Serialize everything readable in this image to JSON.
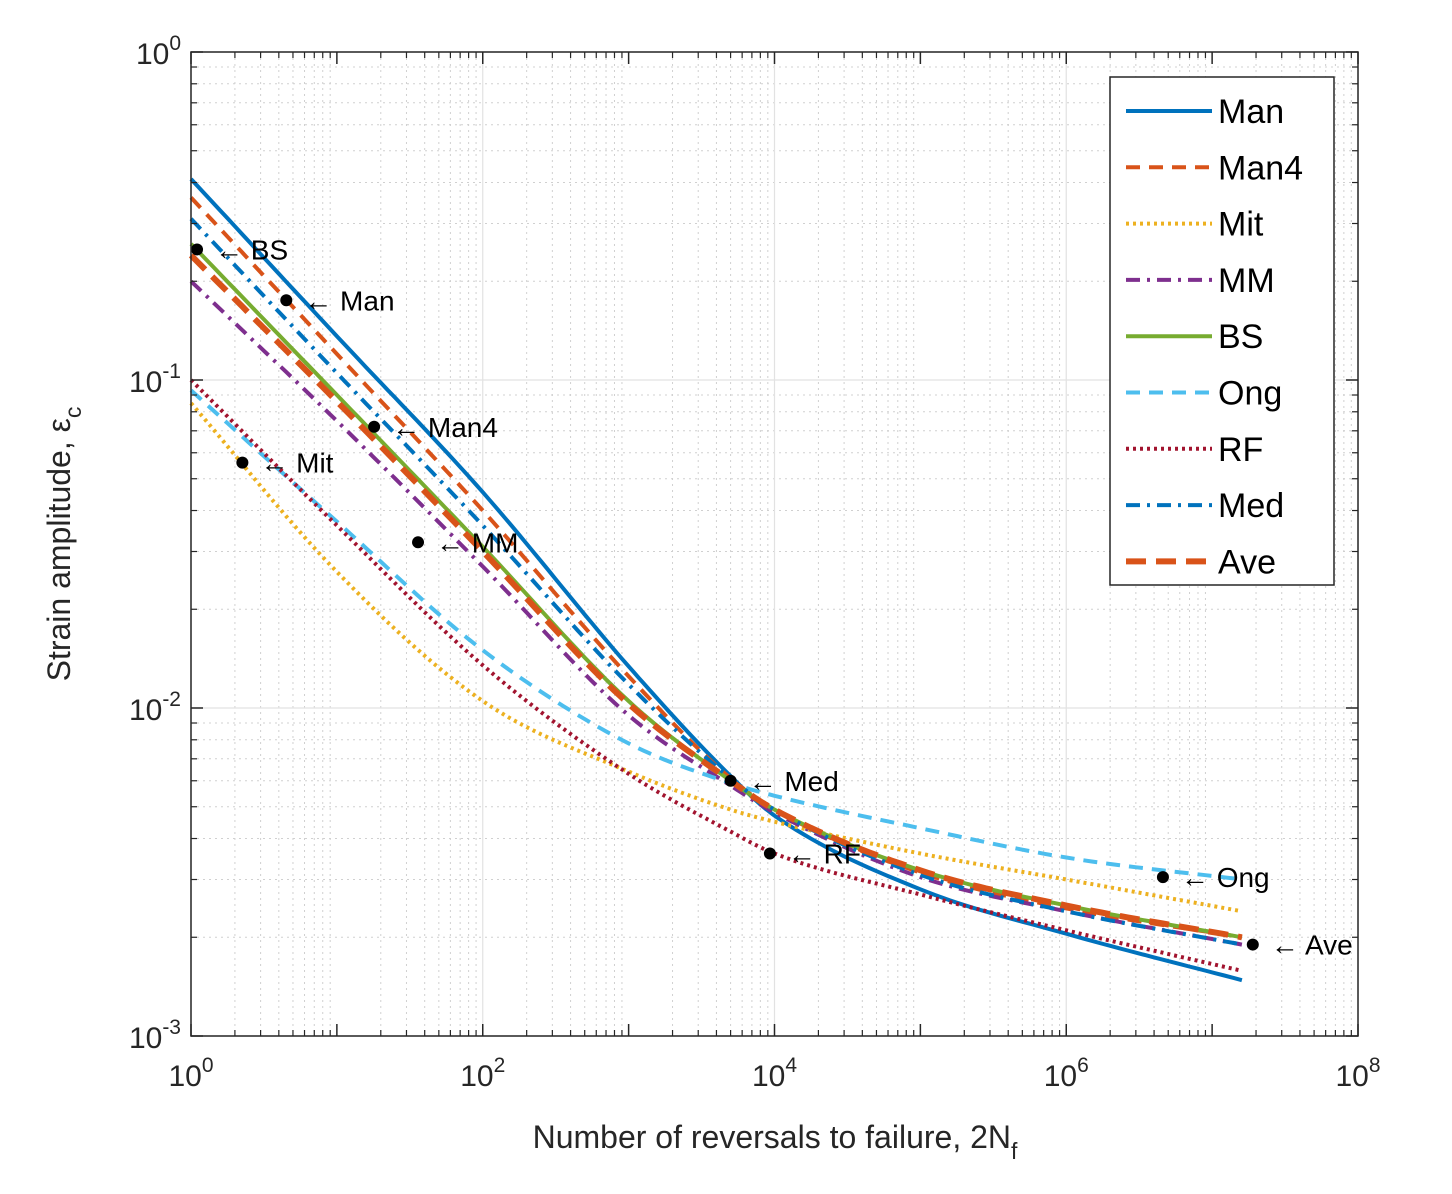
{
  "chart_data": {
    "type": "line",
    "xscale": "log",
    "yscale": "log",
    "xlim": [
      1,
      100000000
    ],
    "ylim": [
      0.001,
      1
    ],
    "xlabel": "Number of reversals to failure, 2N",
    "xlabel_sub": "f",
    "ylabel": "Strain amplitude, ε",
    "ylabel_sub": "c",
    "xticks": [
      {
        "base": "10",
        "exp": "0",
        "value": 1
      },
      {
        "base": "10",
        "exp": "2",
        "value": 100
      },
      {
        "base": "10",
        "exp": "4",
        "value": 10000
      },
      {
        "base": "10",
        "exp": "6",
        "value": 1000000
      },
      {
        "base": "10",
        "exp": "8",
        "value": 100000000
      }
    ],
    "yticks": [
      {
        "base": "10",
        "exp": "0",
        "value": 1
      },
      {
        "base": "10",
        "exp": "-1",
        "value": 0.1
      },
      {
        "base": "10",
        "exp": "-2",
        "value": 0.01
      },
      {
        "base": "10",
        "exp": "-3",
        "value": 0.001
      }
    ],
    "grid": true,
    "minor_grid": true,
    "legend_position": "top-right",
    "series": [
      {
        "name": "Man",
        "color": "#0072BD",
        "dash": "solid",
        "width": 4,
        "x": [
          1,
          10,
          100,
          1000,
          5000,
          10000,
          100000,
          1000000,
          16000000
        ],
        "y": [
          0.41,
          0.136,
          0.0455,
          0.0134,
          0.0062,
          0.0047,
          0.0028,
          0.00205,
          0.00148
        ]
      },
      {
        "name": "Man4",
        "color": "#D95319",
        "dash": "dashed",
        "width": 4,
        "x": [
          1,
          10,
          100,
          1000,
          5000,
          10000,
          100000,
          1000000,
          16000000
        ],
        "y": [
          0.36,
          0.12,
          0.04,
          0.0125,
          0.0061,
          0.0049,
          0.00315,
          0.00245,
          0.002
        ]
      },
      {
        "name": "Mit",
        "color": "#EDB120",
        "dash": "dotted",
        "width": 4,
        "x": [
          1,
          10,
          100,
          1000,
          5000,
          10000,
          100000,
          1000000,
          16000000
        ],
        "y": [
          0.085,
          0.026,
          0.0105,
          0.0064,
          0.0049,
          0.0045,
          0.0036,
          0.003,
          0.0024
        ]
      },
      {
        "name": "MM",
        "color": "#7E2F8E",
        "dash": "dashdot",
        "width": 4,
        "x": [
          1,
          10,
          100,
          1000,
          5000,
          10000,
          100000,
          1000000,
          16000000
        ],
        "y": [
          0.2,
          0.075,
          0.027,
          0.0095,
          0.0058,
          0.0048,
          0.00305,
          0.0024,
          0.0019
        ]
      },
      {
        "name": "BS",
        "color": "#77AC30",
        "dash": "solid",
        "width": 4,
        "x": [
          1,
          10,
          100,
          1000,
          5000,
          10000,
          100000,
          1000000,
          16000000
        ],
        "y": [
          0.26,
          0.09,
          0.031,
          0.0105,
          0.006,
          0.0049,
          0.0032,
          0.0025,
          0.002
        ]
      },
      {
        "name": "Ong",
        "color": "#4DBEEE",
        "dash": "dashed",
        "width": 4,
        "x": [
          1,
          10,
          100,
          1000,
          5000,
          10000,
          100000,
          1000000,
          16000000
        ],
        "y": [
          0.093,
          0.037,
          0.015,
          0.0078,
          0.0059,
          0.0054,
          0.0043,
          0.0035,
          0.003
        ]
      },
      {
        "name": "RF",
        "color": "#A2142F",
        "dash": "dotted",
        "width": 4,
        "x": [
          1,
          10,
          100,
          1000,
          5000,
          10000,
          100000,
          1000000,
          16000000
        ],
        "y": [
          0.1,
          0.036,
          0.0135,
          0.0063,
          0.0042,
          0.0036,
          0.0027,
          0.0021,
          0.00158
        ]
      },
      {
        "name": "Med",
        "color": "#0072BD",
        "dash": "dashdot",
        "width": 4,
        "x": [
          1,
          10,
          100,
          1000,
          5000,
          10000,
          100000,
          1000000,
          16000000
        ],
        "y": [
          0.31,
          0.105,
          0.036,
          0.0118,
          0.0061,
          0.0049,
          0.0031,
          0.0024,
          0.0019
        ]
      },
      {
        "name": "Ave",
        "color": "#D95319",
        "dash": "longdash",
        "width": 6,
        "x": [
          1,
          10,
          100,
          1000,
          5000,
          10000,
          100000,
          1000000,
          16000000
        ],
        "y": [
          0.24,
          0.086,
          0.03,
          0.0103,
          0.006,
          0.0049,
          0.0032,
          0.0025,
          0.002
        ]
      }
    ],
    "markers": [
      {
        "label": "BS",
        "x": 1.1,
        "y": 0.25
      },
      {
        "label": "Man",
        "x": 4.5,
        "y": 0.175
      },
      {
        "label": "Man4",
        "x": 18,
        "y": 0.072
      },
      {
        "label": "Mit",
        "x": 2.25,
        "y": 0.056
      },
      {
        "label": "MM",
        "x": 36,
        "y": 0.032
      },
      {
        "label": "Med",
        "x": 5000,
        "y": 0.006
      },
      {
        "label": "RF",
        "x": 9300,
        "y": 0.0036
      },
      {
        "label": "Ong",
        "x": 4600000,
        "y": 0.00305
      },
      {
        "label": "Ave",
        "x": 19000000,
        "y": 0.0019
      }
    ],
    "annotation_arrow": "←"
  }
}
